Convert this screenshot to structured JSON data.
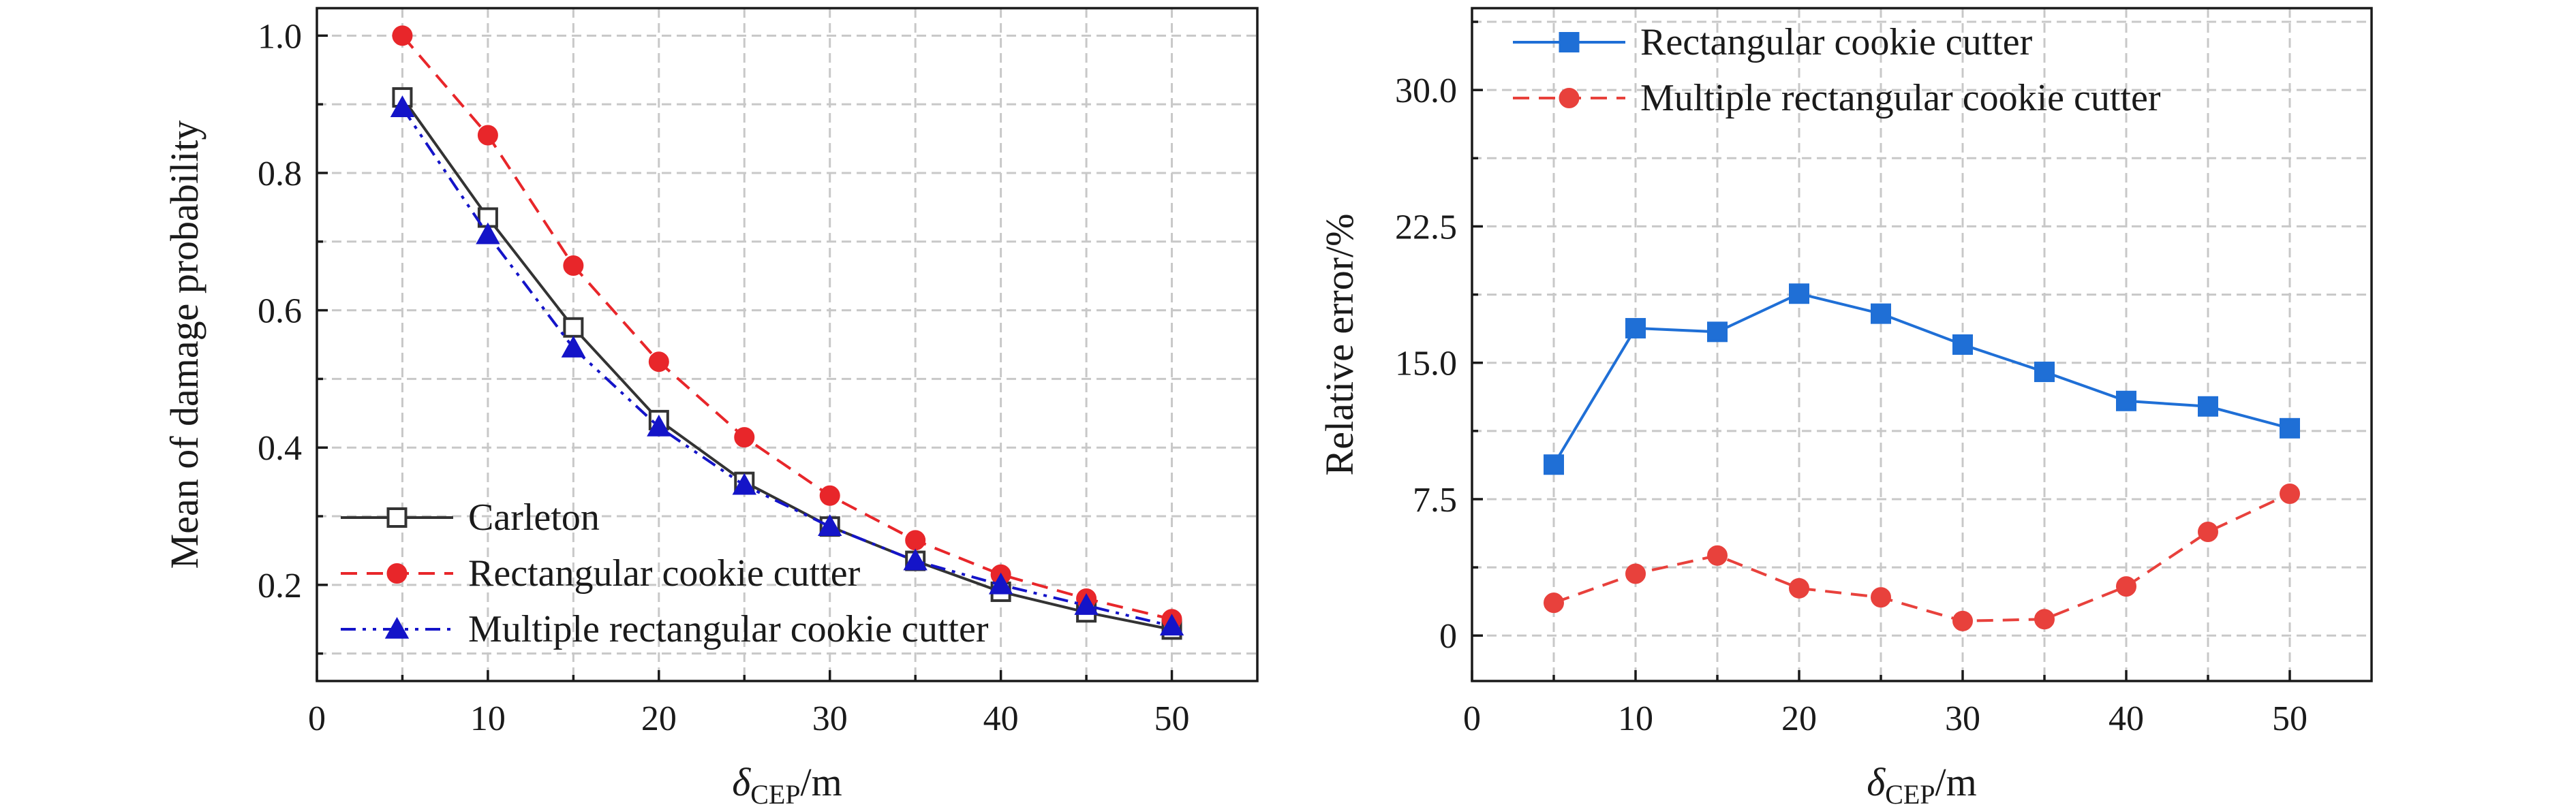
{
  "chart_data": [
    {
      "type": "line",
      "xlabel": "δCEP/m",
      "xlabel_parts": [
        "δ",
        "CEP",
        "/m"
      ],
      "ylabel": "Mean of damage probability",
      "xlim": [
        0,
        55
      ],
      "ylim": [
        0.06,
        1.04
      ],
      "xticks": [
        0,
        10,
        20,
        30,
        40,
        50
      ],
      "xtick_labels": [
        "0",
        "10",
        "20",
        "30",
        "40",
        "50"
      ],
      "yticks": [
        0.2,
        0.4,
        0.6,
        0.8,
        1.0
      ],
      "ytick_labels": [
        "0.2",
        "0.4",
        "0.6",
        "0.8",
        "1.0"
      ],
      "grid": true,
      "legend_position": "lower-left",
      "x": [
        5,
        10,
        15,
        20,
        25,
        30,
        35,
        40,
        45,
        50
      ],
      "series": [
        {
          "name": "Carleton",
          "color": "#333333",
          "marker": "open-square",
          "line": "solid",
          "values": [
            0.91,
            0.735,
            0.575,
            0.44,
            0.35,
            0.285,
            0.235,
            0.19,
            0.16,
            0.135
          ]
        },
        {
          "name": "Rectangular cookie cutter",
          "color": "#e8262a",
          "marker": "filled-circle",
          "line": "dashed",
          "values": [
            1.0,
            0.855,
            0.665,
            0.525,
            0.415,
            0.33,
            0.265,
            0.215,
            0.18,
            0.15
          ]
        },
        {
          "name": "Multiple rectangular cookie cutter",
          "color": "#1414c8",
          "marker": "filled-triangle",
          "line": "dash-dot-dot",
          "values": [
            0.895,
            0.71,
            0.545,
            0.43,
            0.345,
            0.285,
            0.235,
            0.2,
            0.17,
            0.14
          ]
        }
      ]
    },
    {
      "type": "line",
      "xlabel": "δCEP/m",
      "xlabel_parts": [
        "δ",
        "CEP",
        "/m"
      ],
      "ylabel": "Relative error/%",
      "xlim": [
        0,
        55
      ],
      "ylim": [
        -2.5,
        34.5
      ],
      "xticks": [
        0,
        10,
        20,
        30,
        40,
        50
      ],
      "xtick_labels": [
        "0",
        "10",
        "20",
        "30",
        "40",
        "50"
      ],
      "yticks": [
        0,
        7.5,
        15,
        22.5,
        30
      ],
      "ytick_labels": [
        "0",
        "7.5",
        "15.0",
        "22.5",
        "30.0"
      ],
      "grid": true,
      "legend_position": "upper-left",
      "x": [
        5,
        10,
        15,
        20,
        25,
        30,
        35,
        40,
        45,
        50
      ],
      "series": [
        {
          "name": "Rectangular cookie cutter",
          "color": "#1f6fd6",
          "marker": "filled-square",
          "line": "solid",
          "values": [
            9.4,
            16.9,
            16.7,
            18.8,
            17.7,
            16.0,
            14.5,
            12.9,
            12.6,
            11.4
          ]
        },
        {
          "name": "Multiple rectangular cookie cutter",
          "color": "#e8413c",
          "marker": "filled-circle",
          "line": "dashed",
          "values": [
            1.8,
            3.4,
            4.4,
            2.6,
            2.1,
            0.8,
            0.9,
            2.7,
            5.7,
            7.8
          ]
        }
      ]
    }
  ]
}
